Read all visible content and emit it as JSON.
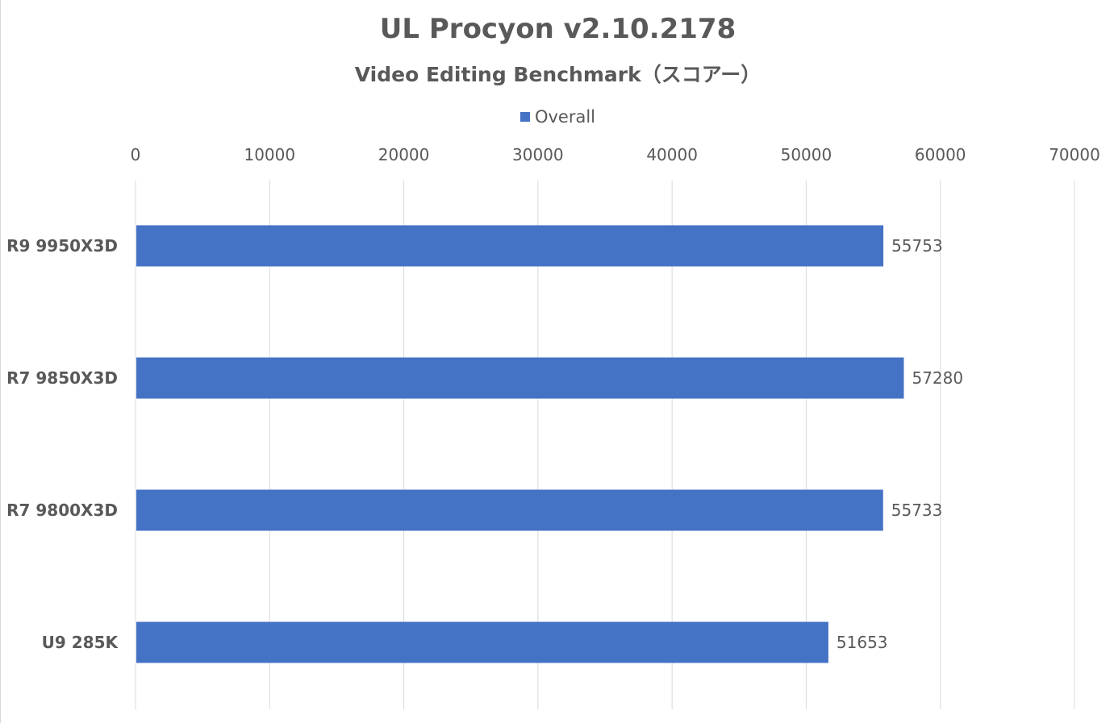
{
  "chart_data": {
    "type": "bar",
    "orientation": "horizontal",
    "title": "UL Procyon v2.10.2178",
    "subtitle": "Video Editing Benchmark（スコアー）",
    "categories": [
      "R9 9950X3D",
      "R7 9850X3D",
      "R7 9800X3D",
      "U9 285K"
    ],
    "series": [
      {
        "name": "Overall",
        "color": "#4472c4",
        "values": [
          55753,
          57280,
          55733,
          51653
        ]
      }
    ],
    "xlim": [
      0,
      70000
    ],
    "x_ticks": [
      0,
      10000,
      20000,
      30000,
      40000,
      50000,
      60000,
      70000
    ],
    "x_tick_labels": [
      "0",
      "10000",
      "20000",
      "30000",
      "40000",
      "50000",
      "60000",
      "70000"
    ],
    "x_axis_position": "top",
    "xlabel": "",
    "ylabel": "",
    "grid": true,
    "legend": "top-center",
    "data_labels": true
  }
}
